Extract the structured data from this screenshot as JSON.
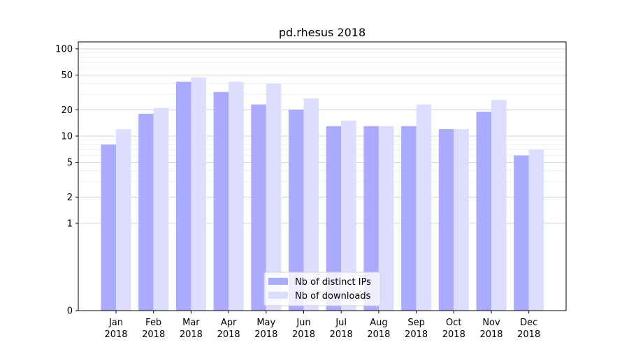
{
  "chart_data": {
    "type": "bar",
    "title": "pd.rhesus 2018",
    "xlabel": "",
    "ylabel": "",
    "yscale": "symlog",
    "ylim": [
      0,
      120
    ],
    "yticks": [
      0,
      1,
      2,
      5,
      10,
      20,
      50,
      100
    ],
    "ytick_labels": [
      "0",
      "1",
      "2",
      "5",
      "10",
      "20",
      "50",
      "100"
    ],
    "grid": true,
    "legend_position": "bottom-center",
    "categories": [
      [
        "Jan",
        "2018"
      ],
      [
        "Feb",
        "2018"
      ],
      [
        "Mar",
        "2018"
      ],
      [
        "Apr",
        "2018"
      ],
      [
        "May",
        "2018"
      ],
      [
        "Jun",
        "2018"
      ],
      [
        "Jul",
        "2018"
      ],
      [
        "Aug",
        "2018"
      ],
      [
        "Sep",
        "2018"
      ],
      [
        "Oct",
        "2018"
      ],
      [
        "Nov",
        "2018"
      ],
      [
        "Dec",
        "2018"
      ]
    ],
    "series": [
      {
        "name": "Nb of distinct IPs",
        "color": "#aaaaff",
        "values": [
          8,
          18,
          42,
          32,
          23,
          20,
          13,
          13,
          13,
          12,
          19,
          6
        ]
      },
      {
        "name": "Nb of downloads",
        "color": "#ddddff",
        "values": [
          12,
          21,
          47,
          42,
          40,
          27,
          15,
          13,
          23,
          12,
          26,
          7
        ]
      }
    ]
  }
}
